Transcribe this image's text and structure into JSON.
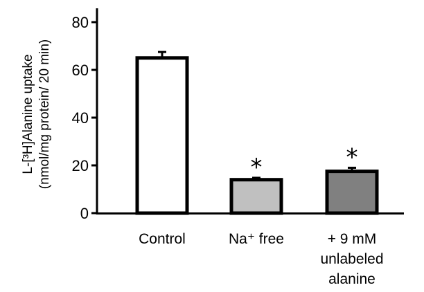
{
  "chart_data": {
    "type": "bar",
    "categories": [
      "Control",
      "Na⁺ free",
      "+ 9 mM unlabeled alanine"
    ],
    "category_lines": [
      [
        "Control"
      ],
      [
        "Na⁺ free"
      ],
      [
        "+ 9 mM",
        "unlabeled",
        "alanine"
      ]
    ],
    "values": [
      65,
      14,
      17.5
    ],
    "errors": [
      2.5,
      0.8,
      1.5
    ],
    "significance": [
      "",
      "*",
      "*"
    ],
    "colors": [
      "#ffffff",
      "#c0c0c0",
      "#808080"
    ],
    "ylabel_line1": "L-[³H]Alanine uptake",
    "ylabel_line2": "(nmol/mg protein/ 20 min)",
    "ylim": [
      0,
      85
    ],
    "yticks": [
      0,
      20,
      40,
      60,
      80
    ],
    "xlabel": "",
    "title": ""
  }
}
